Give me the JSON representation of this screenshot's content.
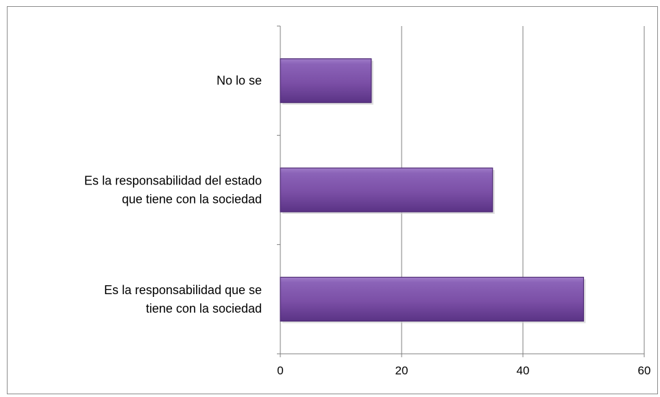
{
  "chart_data": {
    "type": "bar",
    "orientation": "horizontal",
    "categories": [
      [
        "No lo se"
      ],
      [
        "Es la responsabilidad del estado",
        "que tiene con la sociedad"
      ],
      [
        "Es la responsabilidad que se",
        "tiene con la sociedad"
      ]
    ],
    "values": [
      15,
      35,
      50
    ],
    "xlim": [
      0,
      60
    ],
    "xticks": [
      0,
      20,
      40,
      60
    ],
    "grid": "vertical",
    "legend": "none",
    "bar_color": "#7b4fa6",
    "bar_color_light": "#a07cc8",
    "bar_color_dark": "#4d2a73"
  }
}
